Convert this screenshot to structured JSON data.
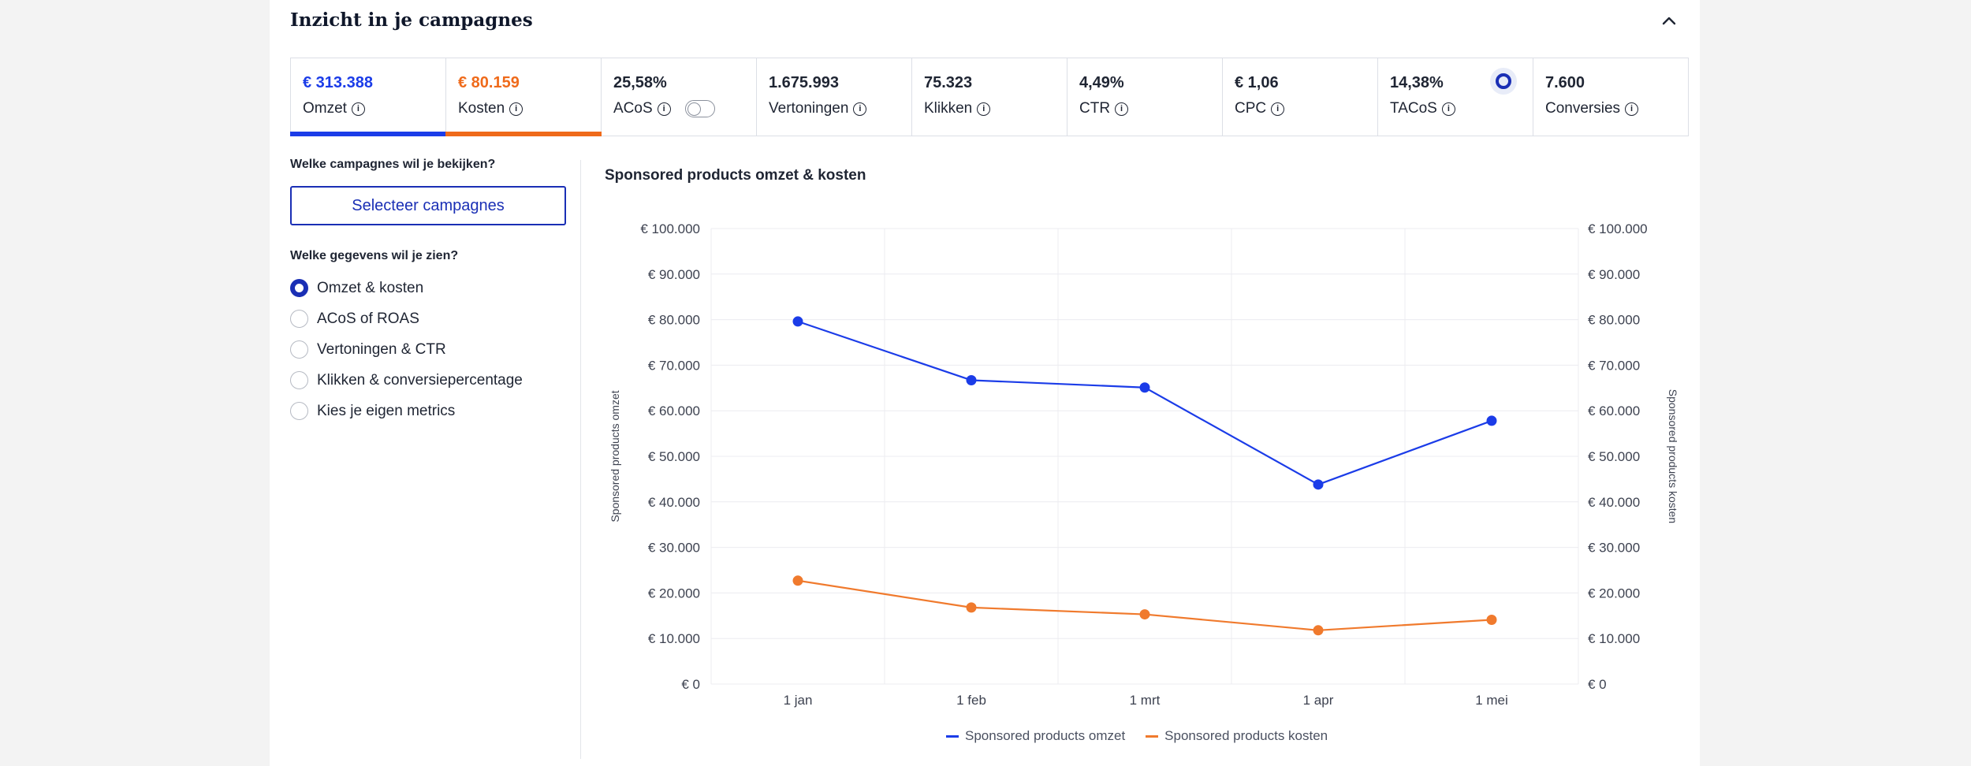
{
  "header": {
    "title": "Inzicht in je campagnes"
  },
  "metrics": [
    {
      "value": "€ 313.388",
      "label": "Omzet",
      "color": "#1b3ce8"
    },
    {
      "value": "€ 80.159",
      "label": "Kosten",
      "color": "#ef6a1a"
    },
    {
      "value": "25,58%",
      "label": "ACoS"
    },
    {
      "value": "1.675.993",
      "label": "Vertoningen"
    },
    {
      "value": "75.323",
      "label": "Klikken"
    },
    {
      "value": "4,49%",
      "label": "CTR"
    },
    {
      "value": "€ 1,06",
      "label": "CPC"
    },
    {
      "value": "14,38%",
      "label": "TACoS"
    },
    {
      "value": "7.600",
      "label": "Conversies"
    }
  ],
  "left": {
    "campaign_question": "Welke campagnes wil je bekijken?",
    "select_button": "Selecteer campagnes",
    "data_question": "Welke gegevens wil je zien?",
    "options": [
      {
        "label": "Omzet & kosten",
        "checked": true
      },
      {
        "label": "ACoS of ROAS",
        "checked": false
      },
      {
        "label": "Vertoningen & CTR",
        "checked": false
      },
      {
        "label": "Klikken & conversiepercentage",
        "checked": false
      },
      {
        "label": "Kies je eigen metrics",
        "checked": false
      }
    ]
  },
  "chart_data": {
    "type": "line",
    "title": "Sponsored products omzet & kosten",
    "categories": [
      "1 jan",
      "1 feb",
      "1 mrt",
      "1 apr",
      "1 mei"
    ],
    "ylabel_left": "Sponsored products omzet",
    "ylabel_right": "Sponsored products kosten",
    "ylim": [
      0,
      100000
    ],
    "yticks": [
      "€ 0",
      "€ 10.000",
      "€ 20.000",
      "€ 30.000",
      "€ 40.000",
      "€ 50.000",
      "€ 60.000",
      "€ 70.000",
      "€ 80.000",
      "€ 90.000",
      "€ 100.000"
    ],
    "grid": true,
    "legend_position": "bottom",
    "series": [
      {
        "name": "Sponsored products omzet",
        "color": "#1b3ce8",
        "values": [
          79600,
          66700,
          65100,
          43800,
          57800
        ]
      },
      {
        "name": "Sponsored products kosten",
        "color": "#f07a2d",
        "values": [
          22700,
          16800,
          15300,
          11800,
          14100
        ]
      }
    ]
  }
}
